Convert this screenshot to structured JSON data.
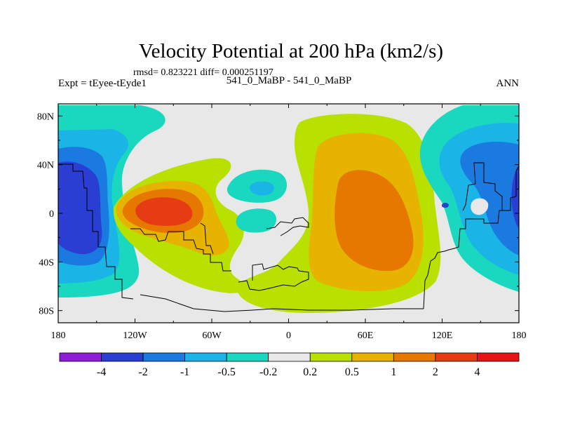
{
  "chart_data": {
    "type": "contour_map",
    "title": "Velocity Potential at 200 hPa (km2/s)",
    "stats_line": "rmsd= 0.823221 diff= 0.000251197",
    "left_label": "Expt = tEyee-tEyde1",
    "center_label": "541_0_MaBP - 541_0_MaBP",
    "right_label": "ANN",
    "xaxis": {
      "range": [
        -180,
        180
      ],
      "ticks": [
        -180,
        -120,
        -60,
        0,
        60,
        120,
        180
      ],
      "tick_labels": [
        "180",
        "120W",
        "60W",
        "0",
        "60E",
        "120E",
        "180"
      ]
    },
    "yaxis": {
      "range": [
        -90,
        90
      ],
      "ticks": [
        80,
        40,
        0,
        -40,
        -80
      ],
      "tick_labels": [
        "80N",
        "40N",
        "0",
        "40S",
        "80S"
      ]
    },
    "colorbar": {
      "levels": [
        "-4",
        "-2",
        "-1",
        "-0.5",
        "-0.2",
        "0.2",
        "0.5",
        "1",
        "2",
        "4"
      ],
      "colors": [
        "#8c1ed8",
        "#2a3ed4",
        "#1a7ae0",
        "#1ab4e6",
        "#1ad8c0",
        "#e8e8e8",
        "#b8e000",
        "#e6b400",
        "#e67800",
        "#e63c14",
        "#e61414"
      ]
    },
    "regions": [
      {
        "name": "pacific-west-negative",
        "value_range": "-2 to -4",
        "center": [
          -160,
          0
        ]
      },
      {
        "name": "americas-positive-max",
        "value_range": "2 to 4",
        "center": [
          -105,
          -3
        ]
      },
      {
        "name": "africa-indian-positive",
        "value_range": "1 to 2",
        "center": [
          45,
          -10
        ]
      },
      {
        "name": "west-pacific-negative",
        "value_range": "-0.5 to -2",
        "center": [
          150,
          10
        ]
      },
      {
        "name": "atlantic-small-negative",
        "value_range": "-0.2 to -0.5",
        "center": [
          -20,
          12
        ]
      }
    ]
  }
}
